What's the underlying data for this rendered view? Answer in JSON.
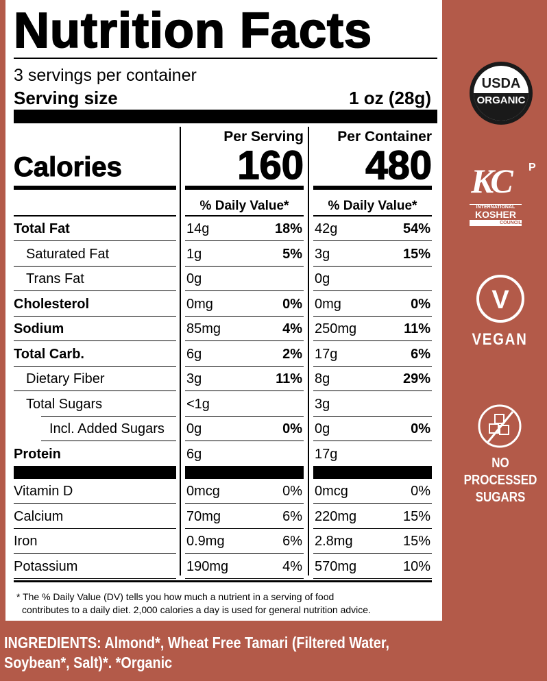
{
  "label": {
    "title": "Nutrition Facts",
    "servings_per_container": "3 servings per container",
    "serving_size_label": "Serving size",
    "serving_size_value": "1 oz (28g)",
    "calories_label": "Calories",
    "columns": [
      {
        "header": "Per Serving",
        "calories": "160",
        "dv_header": "% Daily Value*"
      },
      {
        "header": "Per Container",
        "calories": "480",
        "dv_header": "% Daily Value*"
      }
    ],
    "nutrients": [
      {
        "name": "Total Fat",
        "bold": true,
        "indent": 0,
        "serving": [
          "14g",
          "18%"
        ],
        "container": [
          "42g",
          "54%"
        ]
      },
      {
        "name": "Saturated Fat",
        "bold": false,
        "indent": 1,
        "serving": [
          "1g",
          "5%"
        ],
        "container": [
          "3g",
          "15%"
        ]
      },
      {
        "name": "Trans Fat",
        "bold": false,
        "indent": 1,
        "serving": [
          "0g",
          ""
        ],
        "container": [
          "0g",
          ""
        ]
      },
      {
        "name": "Cholesterol",
        "bold": true,
        "indent": 0,
        "serving": [
          "0mg",
          "0%"
        ],
        "container": [
          "0mg",
          "0%"
        ]
      },
      {
        "name": "Sodium",
        "bold": true,
        "indent": 0,
        "serving": [
          "85mg",
          "4%"
        ],
        "container": [
          "250mg",
          "11%"
        ]
      },
      {
        "name": "Total Carb.",
        "bold": true,
        "indent": 0,
        "serving": [
          "6g",
          "2%"
        ],
        "container": [
          "17g",
          "6%"
        ]
      },
      {
        "name": "Dietary Fiber",
        "bold": false,
        "indent": 1,
        "serving": [
          "3g",
          "11%"
        ],
        "container": [
          "8g",
          "29%"
        ]
      },
      {
        "name": "Total Sugars",
        "bold": false,
        "indent": 1,
        "serving": [
          "<1g",
          ""
        ],
        "container": [
          "3g",
          ""
        ]
      },
      {
        "name": "Incl. Added Sugars",
        "bold": false,
        "indent": 2,
        "serving": [
          "0g",
          "0%"
        ],
        "container": [
          "0g",
          "0%"
        ]
      },
      {
        "name": "Protein",
        "bold": true,
        "indent": 0,
        "serving": [
          "6g",
          ""
        ],
        "container": [
          "17g",
          ""
        ]
      }
    ],
    "vitamins": [
      {
        "name": "Vitamin D",
        "serving": [
          "0mcg",
          "0%"
        ],
        "container": [
          "0mcg",
          "0%"
        ]
      },
      {
        "name": "Calcium",
        "serving": [
          "70mg",
          "6%"
        ],
        "container": [
          "220mg",
          "15%"
        ]
      },
      {
        "name": "Iron",
        "serving": [
          "0.9mg",
          "6%"
        ],
        "container": [
          "2.8mg",
          "15%"
        ]
      },
      {
        "name": "Potassium",
        "serving": [
          "190mg",
          "4%"
        ],
        "container": [
          "570mg",
          "10%"
        ]
      }
    ],
    "footnote_line1": "* The % Daily Value (DV) tells you how much a nutrient in a serving of food",
    "footnote_line2": "contributes to a daily diet. 2,000 calories a day is used for general nutrition advice."
  },
  "ingredients": {
    "line1": "INGREDIENTS: Almond*, Wheat Free Tamari (Filtered Water,",
    "line2": "Soybean*, Salt)*. *Organic"
  },
  "badges": {
    "usda_top": "USDA",
    "usda_bottom": "ORGANIC",
    "kosher_line1": "INTERNATIONAL",
    "kosher_line2": "KOSHER",
    "kosher_line3": "COUNCIL",
    "kosher_mark": "P",
    "vegan_letter": "V",
    "vegan": "VEGAN",
    "sugars_line1": "NO PROCESSED",
    "sugars_line2": "SUGARS"
  },
  "colors": {
    "background": "#b35a49",
    "label": "#ffffff",
    "ink": "#000000"
  }
}
